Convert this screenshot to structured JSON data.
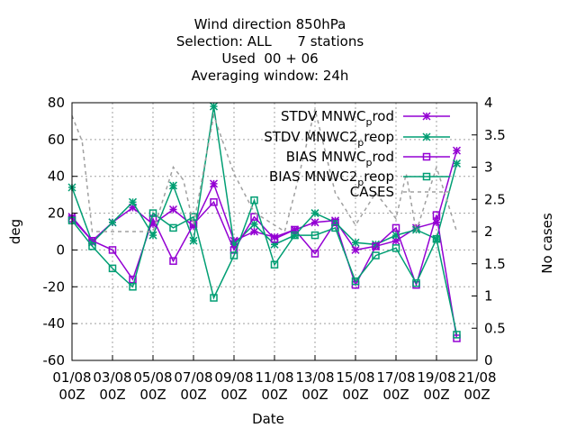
{
  "chart_data": {
    "type": "line",
    "title_lines": [
      "Wind direction 850hPa",
      "Selection: ALL      7 stations",
      "Used  00 + 06",
      "Averaging window: 24h"
    ],
    "xlabel": "Date",
    "ylabel": "deg",
    "y2label": "No cases",
    "x": [
      1,
      2,
      3,
      4,
      5,
      6,
      7,
      8,
      9,
      10,
      11,
      12,
      13,
      14,
      15,
      16,
      17,
      18,
      19,
      20
    ],
    "xlim": [
      1,
      21
    ],
    "ylim": [
      -60,
      80
    ],
    "y2lim": [
      0,
      4
    ],
    "x_ticks": [
      {
        "x": 1,
        "line1": "01/08",
        "line2": "00Z"
      },
      {
        "x": 3,
        "line1": "03/08",
        "line2": "00Z"
      },
      {
        "x": 5,
        "line1": "05/08",
        "line2": "00Z"
      },
      {
        "x": 7,
        "line1": "07/08",
        "line2": "00Z"
      },
      {
        "x": 9,
        "line1": "09/08",
        "line2": "00Z"
      },
      {
        "x": 11,
        "line1": "11/08",
        "line2": "00Z"
      },
      {
        "x": 13,
        "line1": "13/08",
        "line2": "00Z"
      },
      {
        "x": 15,
        "line1": "15/08",
        "line2": "00Z"
      },
      {
        "x": 17,
        "line1": "17/08",
        "line2": "00Z"
      },
      {
        "x": 19,
        "line1": "19/08",
        "line2": "00Z"
      },
      {
        "x": 21,
        "line1": "21/08",
        "line2": "00Z"
      }
    ],
    "y_ticks": [
      "-60",
      "-40",
      "-20",
      "0",
      "20",
      "40",
      "60",
      "80"
    ],
    "y2_ticks": [
      "0",
      "0.5",
      "1",
      "1.5",
      "2",
      "2.5",
      "3",
      "3.5",
      "4"
    ],
    "grid": true,
    "legend_position": "top-right",
    "series": [
      {
        "name": "STDV MNWC_prod",
        "legend_main": "STDV MNWC",
        "legend_sub": "p",
        "legend_tail": "rod",
        "color": "#9400d3",
        "marker": "star",
        "axis": "y",
        "values": [
          18,
          5,
          15,
          23,
          14,
          22,
          13,
          36,
          5,
          10,
          7,
          11,
          15,
          16,
          0,
          2,
          5,
          12,
          15,
          54
        ]
      },
      {
        "name": "STDV MNWC2_preop",
        "legend_main": "STDV MNWC2",
        "legend_sub": "p",
        "legend_tail": "reop",
        "color": "#009e73",
        "marker": "star",
        "axis": "y",
        "values": [
          34,
          4,
          15,
          26,
          8,
          35,
          5,
          78,
          3,
          14,
          3,
          8,
          20,
          15,
          4,
          3,
          8,
          11,
          6,
          47
        ]
      },
      {
        "name": "BIAS MNWC_prod",
        "legend_main": "BIAS MNWC",
        "legend_sub": "p",
        "legend_tail": "rod",
        "color": "#9400d3",
        "marker": "square",
        "axis": "y",
        "values": [
          17,
          5,
          0,
          -16,
          17,
          -6,
          14,
          26,
          0,
          18,
          6,
          11,
          -2,
          15,
          -19,
          2,
          12,
          -19,
          19,
          -48
        ]
      },
      {
        "name": "BIAS MNWC2_preop",
        "legend_main": "BIAS MNWC2",
        "legend_sub": "p",
        "legend_tail": "reop",
        "color": "#009e73",
        "marker": "square",
        "axis": "y",
        "values": [
          16,
          2,
          -10,
          -20,
          20,
          12,
          18,
          -26,
          -3,
          27,
          -8,
          8,
          8,
          12,
          -17,
          -3,
          1,
          -18,
          6,
          -46
        ]
      },
      {
        "name": "CASES",
        "legend_main": "CASES",
        "legend_sub": "",
        "legend_tail": "",
        "color": "#a0a0a0",
        "marker": "none",
        "dashed": true,
        "axis": "y2",
        "x": [
          1,
          1.5,
          2,
          3,
          4,
          5,
          6,
          6.5,
          7,
          8,
          9,
          10,
          11,
          11.5,
          12,
          13,
          14,
          15,
          16,
          17,
          17.5,
          18,
          19,
          19.5,
          20
        ],
        "values": [
          3.8,
          3.4,
          2,
          2,
          2,
          2,
          3,
          2.8,
          2.1,
          3.8,
          2.9,
          2.3,
          2.1,
          2,
          2.6,
          3.9,
          2.6,
          2.1,
          2.6,
          2.2,
          2.9,
          2,
          3,
          2.5,
          2
        ]
      }
    ]
  }
}
